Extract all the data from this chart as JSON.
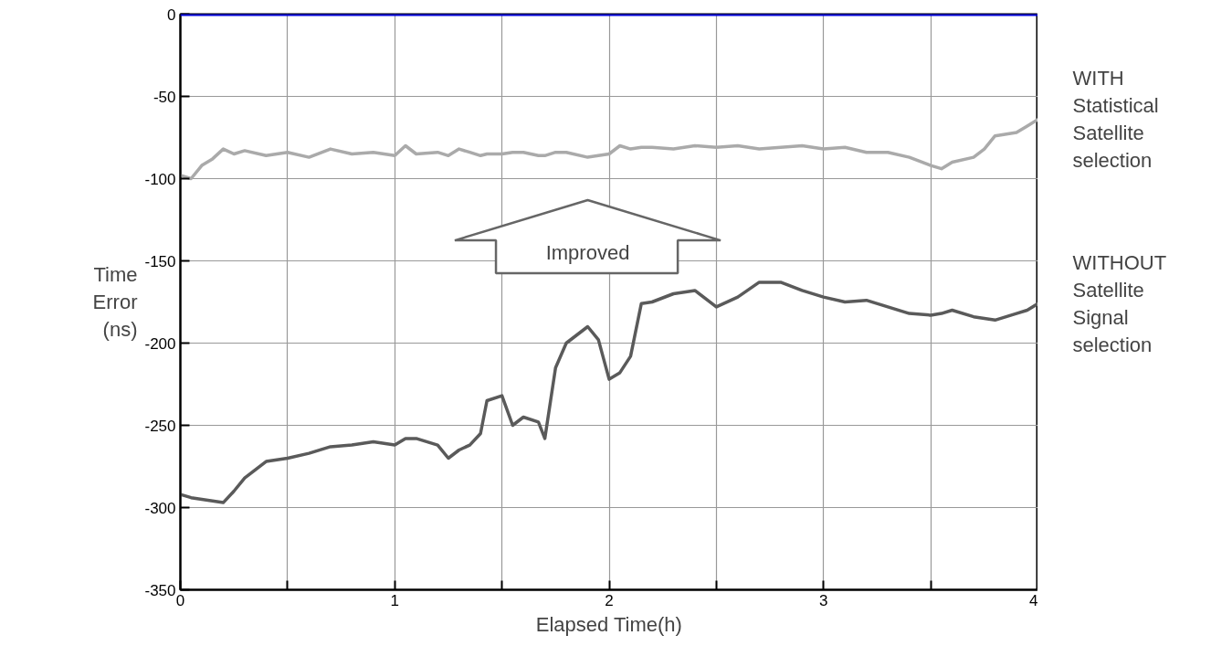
{
  "chart_data": {
    "type": "line",
    "xlabel": "Elapsed Time(h)",
    "ylabel": "Time Error (ns)",
    "x": [
      0,
      0.05,
      0.1,
      0.15,
      0.2,
      0.25,
      0.3,
      0.4,
      0.5,
      0.6,
      0.7,
      0.8,
      0.9,
      1.0,
      1.05,
      1.1,
      1.2,
      1.25,
      1.3,
      1.35,
      1.4,
      1.43,
      1.5,
      1.55,
      1.6,
      1.67,
      1.7,
      1.75,
      1.8,
      1.9,
      1.95,
      2.0,
      2.05,
      2.1,
      2.15,
      2.2,
      2.3,
      2.4,
      2.5,
      2.6,
      2.7,
      2.8,
      2.9,
      3.0,
      3.1,
      3.2,
      3.3,
      3.4,
      3.5,
      3.55,
      3.6,
      3.7,
      3.75,
      3.8,
      3.9,
      3.95,
      4.0
    ],
    "series": [
      {
        "name": "WITH Statistical Satellite selection",
        "color": "#aaaaaa",
        "values": [
          -98,
          -100,
          -92,
          -88,
          -82,
          -85,
          -83,
          -86,
          -84,
          -87,
          -82,
          -85,
          -84,
          -86,
          -80,
          -85,
          -84,
          -86,
          -82,
          -84,
          -86,
          -85,
          -85,
          -84,
          -84,
          -86,
          -86,
          -84,
          -84,
          -87,
          -86,
          -85,
          -80,
          -82,
          -81,
          -81,
          -82,
          -80,
          -81,
          -80,
          -82,
          -81,
          -80,
          -82,
          -81,
          -84,
          -84,
          -87,
          -92,
          -94,
          -90,
          -87,
          -82,
          -74,
          -72,
          -68,
          -64
        ]
      },
      {
        "name": "WITHOUT Satellite Signal selection",
        "color": "#5a5a5a",
        "values": [
          -292,
          -294,
          -295,
          -296,
          -297,
          -290,
          -282,
          -272,
          -270,
          -267,
          -263,
          -262,
          -260,
          -262,
          -258,
          -258,
          -262,
          -270,
          -265,
          -262,
          -255,
          -235,
          -232,
          -250,
          -245,
          -248,
          -258,
          -215,
          -200,
          -190,
          -198,
          -222,
          -218,
          -208,
          -176,
          -175,
          -170,
          -168,
          -178,
          -172,
          -163,
          -163,
          -168,
          -172,
          -175,
          -174,
          -178,
          -182,
          -183,
          -182,
          -180,
          -184,
          -185,
          -186,
          -182,
          -180,
          -176
        ]
      }
    ],
    "xlim": [
      0,
      4
    ],
    "ylim": [
      -350,
      0
    ],
    "xticks": [
      0,
      {
        "value": 0.5,
        "label": null
      },
      1,
      {
        "value": 1.5,
        "label": null
      },
      2,
      {
        "value": 2.5,
        "label": null
      },
      3,
      {
        "value": 3.5,
        "label": null
      },
      4
    ],
    "yticks": [
      -350,
      -300,
      -250,
      -200,
      -150,
      -100,
      -50,
      0
    ],
    "grid": true,
    "marker": "none",
    "line_style": "solid",
    "ref_lines": [
      {
        "axis": "y",
        "value": 0,
        "color": "#0000dd"
      }
    ],
    "annotations": [
      "Improved"
    ]
  }
}
